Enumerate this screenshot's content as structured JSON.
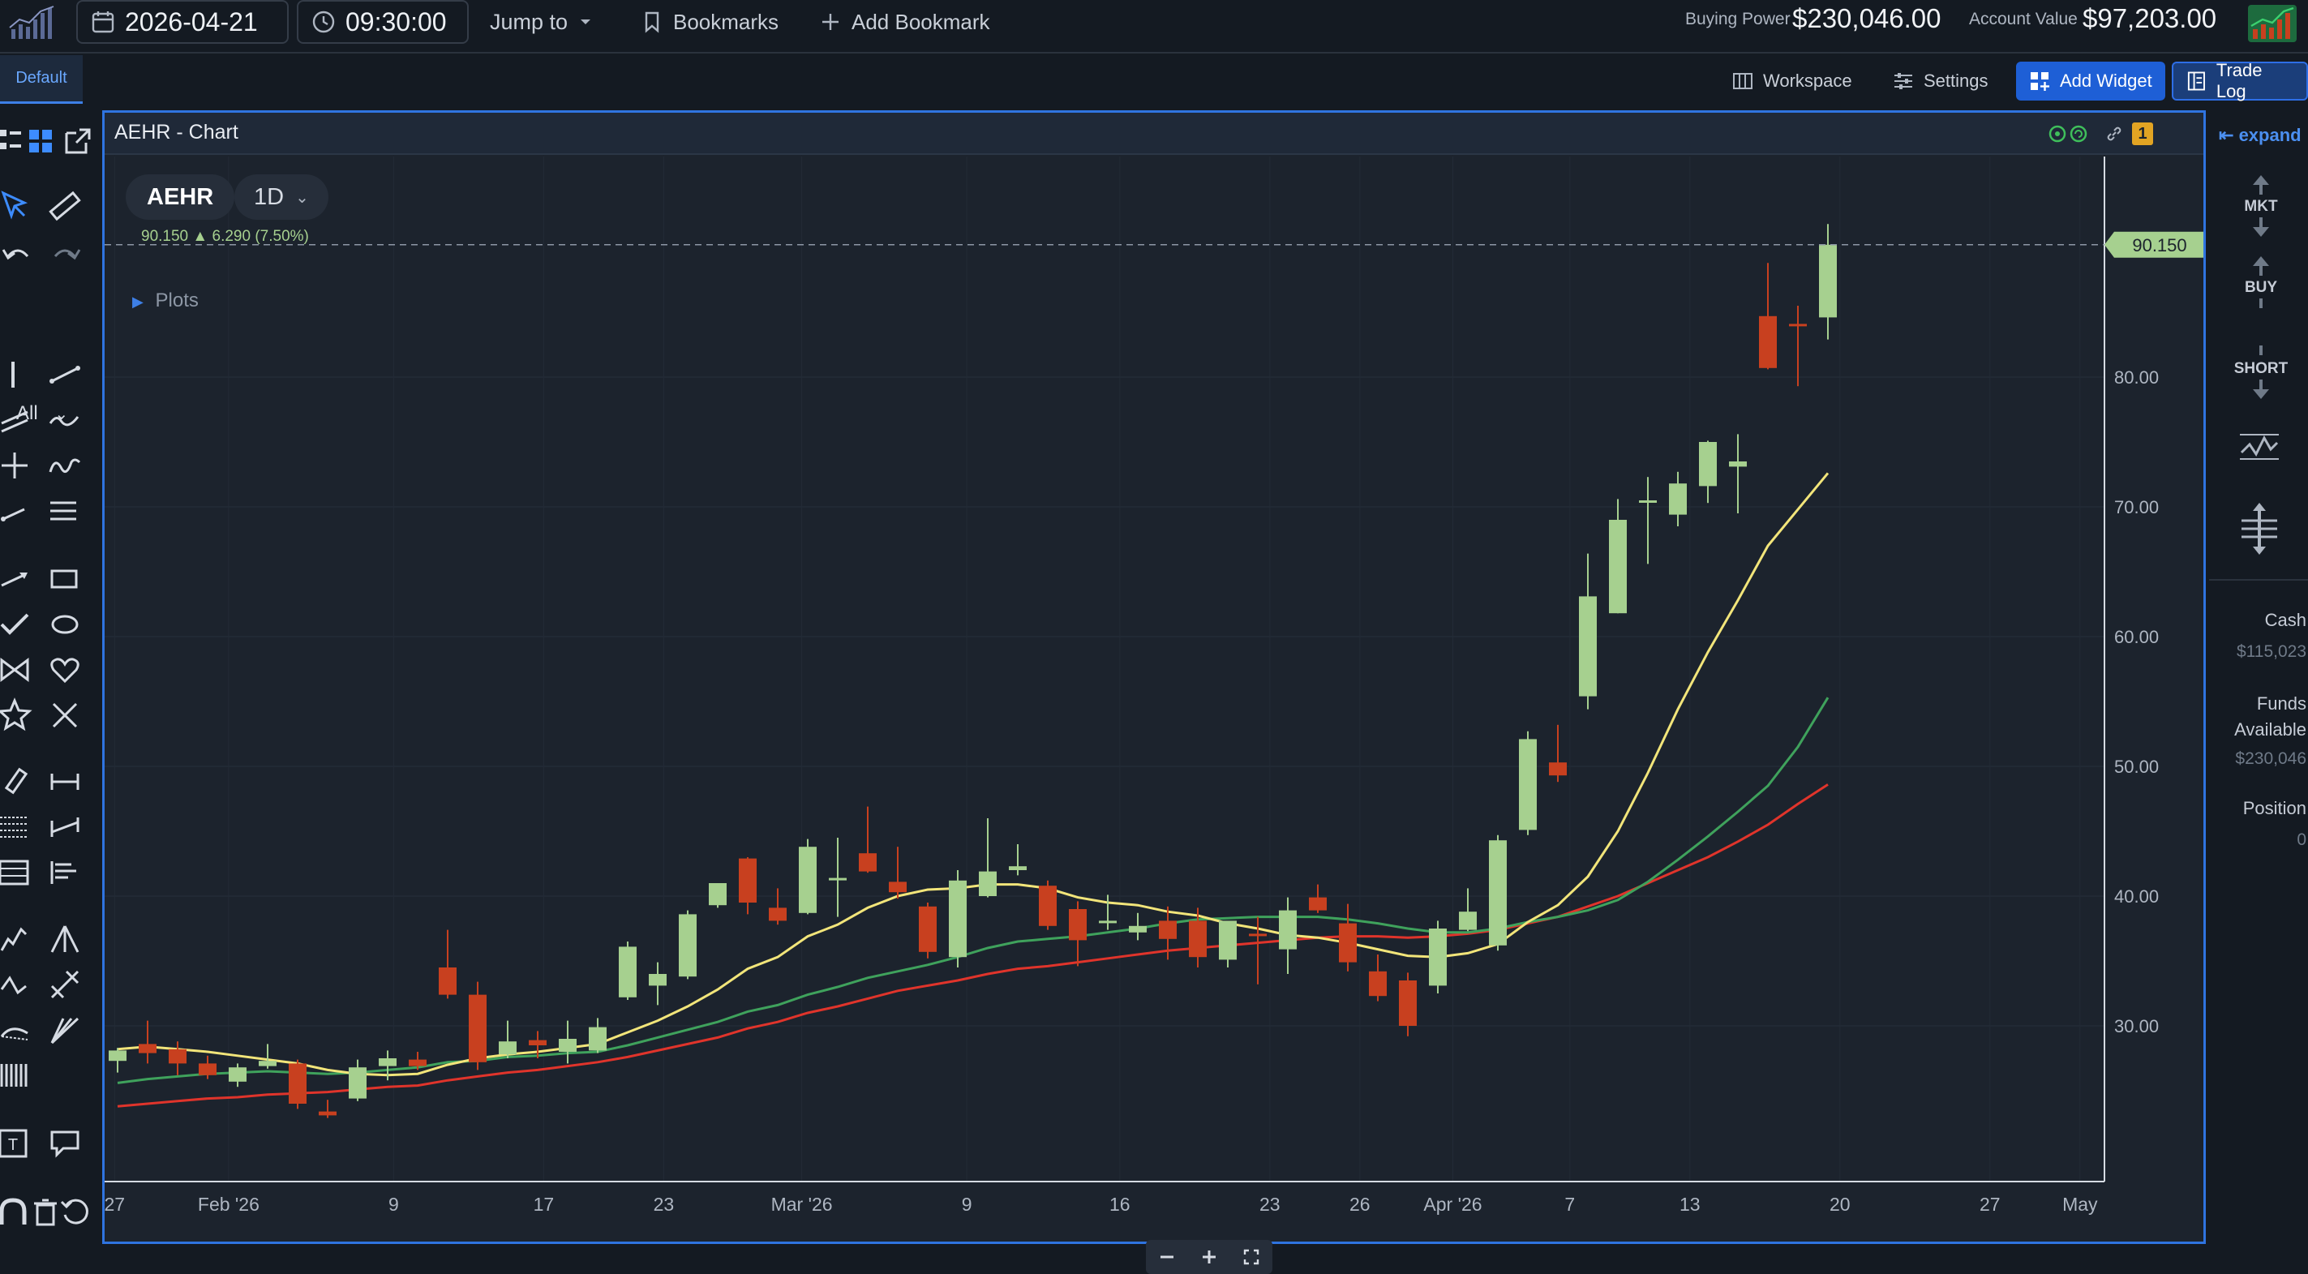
{
  "topbar": {
    "date": "2026-04-21",
    "time": "09:30:00",
    "jump_to": "Jump to",
    "bookmarks": "Bookmarks",
    "add_bookmark": "Add Bookmark",
    "buying_power_label": "Buying Power",
    "buying_power_value": "$230,046.00",
    "account_value_label": "Account Value",
    "account_value_value": "$97,203.00"
  },
  "subbar": {
    "tab_default": "Default",
    "workspace": "Workspace",
    "settings": "Settings",
    "add_widget": "Add Widget",
    "trade_log": "Trade Log"
  },
  "left_tools": {
    "filter_all": "All"
  },
  "panel": {
    "title": "AEHR - Chart",
    "badge": "1",
    "symbol": "AEHR",
    "timeframe": "1D",
    "last_price": "90.150",
    "change": "6.290 (7.50%)",
    "plots_label": "Plots"
  },
  "colors": {
    "up": "#a6d08f",
    "down": "#c8401f",
    "ma_fast": "#f2e57a",
    "ma_mid": "#3fa25c",
    "ma_slow": "#e0342b",
    "accent": "#2f74e0"
  },
  "chart_data": {
    "type": "candlestick",
    "y_ticks": [
      "30.00",
      "40.00",
      "50.00",
      "60.00",
      "70.00",
      "80.00"
    ],
    "ylim": [
      18,
      97
    ],
    "price_label": "90.150",
    "x_ticks": [
      {
        "label": "27",
        "i": -0.1
      },
      {
        "label": "Feb '26",
        "i": 3.7
      },
      {
        "label": "9",
        "i": 9.2
      },
      {
        "label": "17",
        "i": 14.2
      },
      {
        "label": "23",
        "i": 18.2
      },
      {
        "label": "Mar '26",
        "i": 22.8
      },
      {
        "label": "9",
        "i": 28.3
      },
      {
        "label": "16",
        "i": 33.4
      },
      {
        "label": "23",
        "i": 38.4
      },
      {
        "label": "26",
        "i": 41.4
      },
      {
        "label": "Apr '26",
        "i": 44.5
      },
      {
        "label": "7",
        "i": 48.4
      },
      {
        "label": "13",
        "i": 52.4
      },
      {
        "label": "20",
        "i": 57.4
      },
      {
        "label": "27",
        "i": 62.4
      },
      {
        "label": "May",
        "i": 65.4
      }
    ],
    "candles": [
      [
        27.3,
        28.3,
        26.4,
        28.1
      ],
      [
        28.6,
        30.4,
        27.1,
        27.9
      ],
      [
        28.2,
        28.8,
        26.2,
        27.1
      ],
      [
        27.1,
        27.7,
        25.9,
        26.2
      ],
      [
        25.7,
        27.1,
        25.3,
        26.8
      ],
      [
        26.9,
        28.6,
        26.7,
        27.3
      ],
      [
        27.1,
        27.4,
        23.6,
        24.0
      ],
      [
        23.4,
        24.3,
        22.9,
        23.1
      ],
      [
        24.4,
        27.4,
        24.2,
        26.8
      ],
      [
        26.9,
        28.1,
        25.8,
        27.5
      ],
      [
        27.4,
        28.0,
        26.6,
        26.9
      ],
      [
        34.5,
        37.4,
        32.1,
        32.4
      ],
      [
        32.4,
        33.4,
        26.6,
        27.2
      ],
      [
        27.8,
        30.4,
        27.5,
        28.8
      ],
      [
        28.9,
        29.6,
        27.5,
        28.5
      ],
      [
        28.0,
        30.4,
        27.1,
        29.0
      ],
      [
        28.1,
        30.6,
        27.9,
        29.9
      ],
      [
        32.2,
        36.5,
        32.0,
        36.1
      ],
      [
        33.1,
        34.9,
        31.6,
        34.0
      ],
      [
        33.8,
        38.9,
        33.6,
        38.6
      ],
      [
        39.3,
        41.0,
        39.1,
        41.0
      ],
      [
        42.9,
        43.0,
        38.6,
        39.5
      ],
      [
        39.1,
        40.6,
        37.8,
        38.1
      ],
      [
        38.7,
        44.4,
        38.6,
        43.8
      ],
      [
        41.3,
        44.5,
        38.4,
        41.4
      ],
      [
        43.3,
        46.9,
        41.8,
        41.9
      ],
      [
        41.1,
        43.8,
        39.8,
        40.3
      ],
      [
        39.2,
        39.5,
        35.2,
        35.7
      ],
      [
        35.3,
        42.0,
        34.5,
        41.2
      ],
      [
        40.0,
        46.0,
        39.9,
        41.9
      ],
      [
        42.0,
        44.0,
        41.6,
        42.3
      ],
      [
        40.8,
        41.2,
        37.4,
        37.7
      ],
      [
        39.0,
        39.6,
        34.6,
        36.6
      ],
      [
        38.1,
        40.1,
        37.4,
        38.1
      ],
      [
        37.2,
        38.7,
        36.6,
        37.7
      ],
      [
        38.1,
        39.2,
        35.1,
        36.7
      ],
      [
        38.1,
        39.1,
        34.5,
        35.3
      ],
      [
        35.1,
        37.5,
        34.5,
        38.1
      ],
      [
        37.1,
        38.4,
        33.2,
        37.0
      ],
      [
        35.9,
        39.9,
        34.0,
        38.9
      ],
      [
        39.9,
        40.9,
        38.7,
        38.9
      ],
      [
        37.9,
        39.4,
        34.2,
        34.9
      ],
      [
        34.2,
        35.5,
        31.9,
        32.3
      ],
      [
        33.5,
        34.1,
        29.2,
        30.0
      ],
      [
        33.1,
        38.1,
        32.5,
        37.5
      ],
      [
        37.4,
        40.6,
        37.3,
        38.8
      ],
      [
        36.2,
        44.7,
        35.8,
        44.3
      ],
      [
        45.1,
        52.7,
        44.7,
        52.1
      ],
      [
        50.3,
        53.2,
        48.8,
        49.3
      ],
      [
        55.4,
        66.4,
        54.4,
        63.1
      ],
      [
        61.8,
        70.6,
        61.8,
        69.0
      ],
      [
        70.4,
        72.3,
        65.6,
        70.5
      ],
      [
        69.4,
        72.7,
        68.5,
        71.8
      ],
      [
        71.6,
        75.1,
        70.3,
        75.0
      ],
      [
        73.1,
        75.6,
        69.5,
        73.5
      ],
      [
        84.7,
        88.8,
        80.6,
        80.7
      ],
      [
        84.1,
        85.5,
        79.3,
        84.0
      ],
      [
        84.6,
        91.8,
        82.9,
        90.2
      ]
    ],
    "ma_fast": [
      28.2,
      28.4,
      28.2,
      28.0,
      27.7,
      27.4,
      27.1,
      26.6,
      26.3,
      26.2,
      26.3,
      27.0,
      27.5,
      27.8,
      28.0,
      28.3,
      28.6,
      29.5,
      30.4,
      31.5,
      32.8,
      34.4,
      35.3,
      36.9,
      37.8,
      39.1,
      40.0,
      40.5,
      40.6,
      40.9,
      40.9,
      40.6,
      39.9,
      39.5,
      39.3,
      38.8,
      38.5,
      37.9,
      37.5,
      37.0,
      36.8,
      36.4,
      35.9,
      35.4,
      35.3,
      35.6,
      36.3,
      38.0,
      39.3,
      41.5,
      45.0,
      49.5,
      54.4,
      58.8,
      62.8,
      67.0,
      69.8,
      72.6
    ],
    "ma_mid": [
      25.6,
      25.9,
      26.1,
      26.3,
      26.4,
      26.5,
      26.4,
      26.3,
      26.4,
      26.6,
      26.8,
      27.2,
      27.3,
      27.6,
      27.7,
      27.9,
      28.0,
      28.5,
      29.1,
      29.7,
      30.3,
      31.1,
      31.6,
      32.4,
      33.0,
      33.7,
      34.2,
      34.7,
      35.3,
      36.0,
      36.5,
      36.7,
      36.9,
      37.2,
      37.5,
      37.9,
      38.2,
      38.3,
      38.4,
      38.4,
      38.4,
      38.2,
      37.9,
      37.5,
      37.2,
      37.2,
      37.5,
      38.0,
      38.4,
      38.9,
      39.7,
      41.1,
      42.8,
      44.6,
      46.5,
      48.5,
      51.5,
      55.3
    ],
    "ma_slow": [
      23.8,
      24.0,
      24.2,
      24.4,
      24.5,
      24.7,
      24.8,
      24.9,
      25.1,
      25.3,
      25.4,
      25.8,
      26.1,
      26.4,
      26.6,
      26.9,
      27.2,
      27.6,
      28.1,
      28.6,
      29.1,
      29.8,
      30.3,
      31.0,
      31.5,
      32.1,
      32.7,
      33.1,
      33.5,
      34.0,
      34.4,
      34.6,
      34.9,
      35.2,
      35.5,
      35.8,
      36.0,
      36.2,
      36.4,
      36.6,
      36.8,
      36.9,
      36.9,
      36.8,
      36.9,
      37.1,
      37.4,
      37.9,
      38.4,
      39.2,
      40.0,
      41.0,
      42.0,
      43.0,
      44.2,
      45.5,
      47.1,
      48.6
    ]
  }
}
